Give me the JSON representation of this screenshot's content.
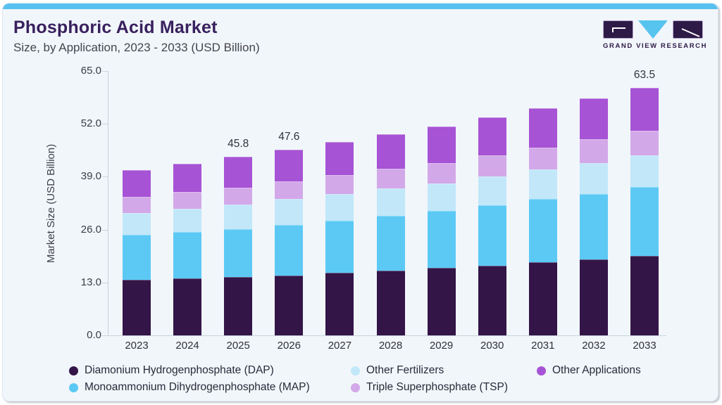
{
  "header": {
    "title": "Phosphoric Acid Market",
    "subtitle": "Size, by Application, 2023 - 2033 (USD Billion)"
  },
  "logo": {
    "text": "GRAND VIEW RESEARCH"
  },
  "colors": {
    "accent_bar": "#58c1ef",
    "card_bg": "#f1f6fa",
    "title": "#39205e",
    "logo_dark": "#2e1a47",
    "logo_triangle": "#56c4ef",
    "dap": "#331548",
    "map": "#5cc9f5",
    "other_fertilizers": "#c1e7f9",
    "tsp": "#d3a8e9",
    "other_applications": "#a753d5"
  },
  "chart_data": {
    "type": "bar",
    "stacked": true,
    "title": "Phosphoric Acid Market Size, by Application, 2023 - 2033 (USD Billion)",
    "xlabel": "",
    "ylabel": "Market Size (USD Billion)",
    "ylim": [
      0,
      65
    ],
    "yticks": [
      0.0,
      13.0,
      26.0,
      39.0,
      52.0,
      65.0
    ],
    "ytick_labels": [
      "0.0",
      "13.0",
      "26.0",
      "39.0",
      "52.0",
      "65.0"
    ],
    "grid": false,
    "legend_position": "bottom",
    "categories": [
      "2023",
      "2024",
      "2025",
      "2026",
      "2027",
      "2028",
      "2029",
      "2030",
      "2031",
      "2032",
      "2033"
    ],
    "series": [
      {
        "key": "dap",
        "name": "Diamonium Hydrogenphosphate (DAP)",
        "color": "#331548",
        "values": [
          14.2,
          14.6,
          14.9,
          15.3,
          16.0,
          16.6,
          17.3,
          17.9,
          18.7,
          19.4,
          20.4
        ]
      },
      {
        "key": "map",
        "name": "Monoammonium Dihydrogenphosphate (MAP)",
        "color": "#5cc9f5",
        "values": [
          11.5,
          11.9,
          12.3,
          13.0,
          13.3,
          14.1,
          14.6,
          15.5,
          16.2,
          16.9,
          17.7
        ]
      },
      {
        "key": "other-fertilizers",
        "name": "Other Fertilizers",
        "color": "#c1e7f9",
        "values": [
          5.6,
          5.9,
          6.3,
          6.6,
          6.9,
          6.9,
          7.1,
          7.4,
          7.6,
          7.9,
          8.1
        ]
      },
      {
        "key": "tsp",
        "name": "Triple Superphosphate (TSP)",
        "color": "#d3a8e9",
        "values": [
          4.2,
          4.3,
          4.3,
          4.5,
          4.8,
          5.1,
          5.2,
          5.3,
          5.7,
          6.0,
          6.3
        ]
      },
      {
        "key": "other-applications",
        "name": "Other Applications",
        "color": "#a753d5",
        "values": [
          6.9,
          7.3,
          8.0,
          8.2,
          8.5,
          8.8,
          9.4,
          9.7,
          10.0,
          10.6,
          11.0
        ]
      }
    ],
    "totals": [
      42.4,
      44.0,
      45.8,
      47.6,
      49.5,
      51.5,
      53.6,
      55.8,
      58.2,
      60.8,
      63.5
    ],
    "value_labels": [
      {
        "category": "2025",
        "text": "45.8"
      },
      {
        "category": "2026",
        "text": "47.6"
      },
      {
        "category": "2033",
        "text": "63.5"
      }
    ]
  },
  "legend": {
    "columns": [
      {
        "items": [
          {
            "key": "dap",
            "label": "Diamonium Hydrogenphosphate (DAP)",
            "color": "#331548"
          },
          {
            "key": "map",
            "label": "Monoammonium Dihydrogenphosphate (MAP)",
            "color": "#5cc9f5"
          }
        ]
      },
      {
        "items": [
          {
            "key": "other-fertilizers",
            "label": "Other Fertilizers",
            "color": "#c1e7f9"
          },
          {
            "key": "tsp",
            "label": "Triple Superphosphate (TSP)",
            "color": "#d3a8e9"
          }
        ]
      },
      {
        "items": [
          {
            "key": "other-applications",
            "label": "Other Applications",
            "color": "#a753d5"
          }
        ]
      }
    ]
  }
}
